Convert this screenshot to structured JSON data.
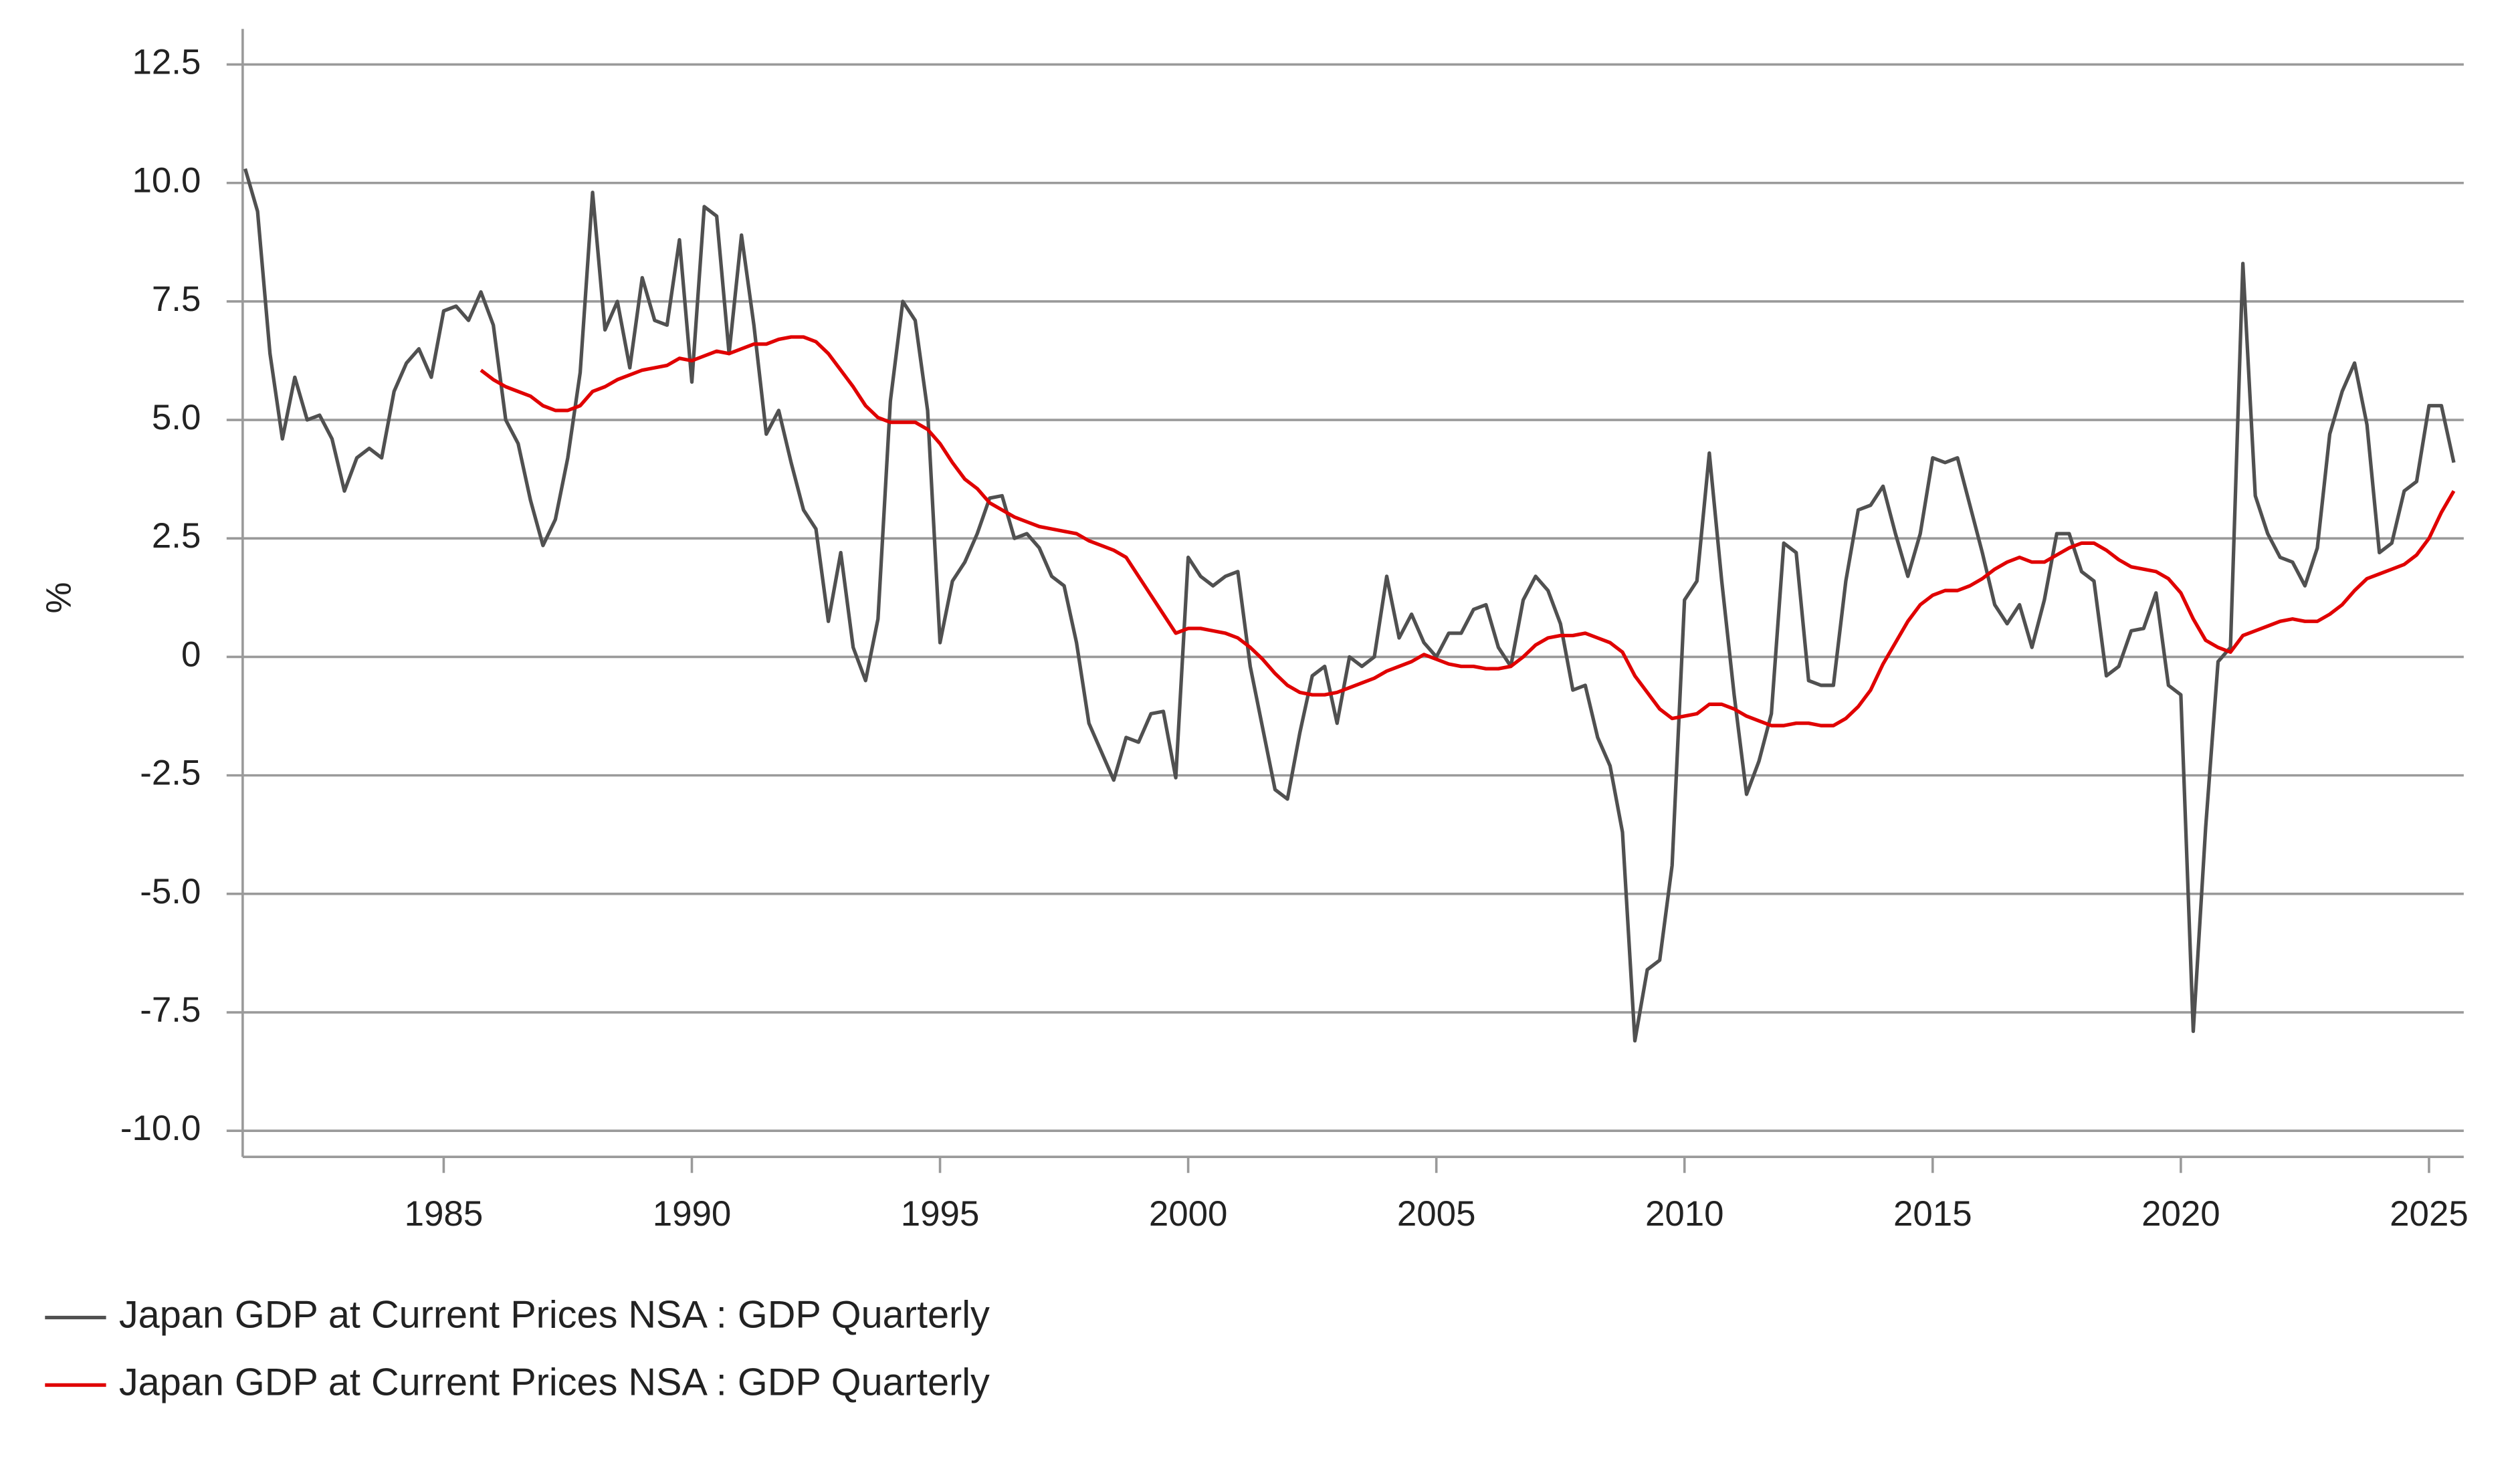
{
  "chart_data": {
    "type": "line",
    "y_label": "%",
    "x": [
      1981,
      1981.25,
      1981.5,
      1981.75,
      1982,
      1982.25,
      1982.5,
      1982.75,
      1983,
      1983.25,
      1983.5,
      1983.75,
      1984,
      1984.25,
      1984.5,
      1984.75,
      1985,
      1985.25,
      1985.5,
      1985.75,
      1986,
      1986.25,
      1986.5,
      1986.75,
      1987,
      1987.25,
      1987.5,
      1987.75,
      1988,
      1988.25,
      1988.5,
      1988.75,
      1989,
      1989.25,
      1989.5,
      1989.75,
      1990,
      1990.25,
      1990.5,
      1990.75,
      1991,
      1991.25,
      1991.5,
      1991.75,
      1992,
      1992.25,
      1992.5,
      1992.75,
      1993,
      1993.25,
      1993.5,
      1993.75,
      1994,
      1994.25,
      1994.5,
      1994.75,
      1995,
      1995.25,
      1995.5,
      1995.75,
      1996,
      1996.25,
      1996.5,
      1996.75,
      1997,
      1997.25,
      1997.5,
      1997.75,
      1998,
      1998.25,
      1998.5,
      1998.75,
      1999,
      1999.25,
      1999.5,
      1999.75,
      2000,
      2000.25,
      2000.5,
      2000.75,
      2001,
      2001.25,
      2001.5,
      2001.75,
      2002,
      2002.25,
      2002.5,
      2002.75,
      2003,
      2003.25,
      2003.5,
      2003.75,
      2004,
      2004.25,
      2004.5,
      2004.75,
      2005,
      2005.25,
      2005.5,
      2005.75,
      2006,
      2006.25,
      2006.5,
      2006.75,
      2007,
      2007.25,
      2007.5,
      2007.75,
      2008,
      2008.25,
      2008.5,
      2008.75,
      2009,
      2009.25,
      2009.5,
      2009.75,
      2010,
      2010.25,
      2010.5,
      2010.75,
      2011,
      2011.25,
      2011.5,
      2011.75,
      2012,
      2012.25,
      2012.5,
      2012.75,
      2013,
      2013.25,
      2013.5,
      2013.75,
      2014,
      2014.25,
      2014.5,
      2014.75,
      2015,
      2015.25,
      2015.5,
      2015.75,
      2016,
      2016.25,
      2016.5,
      2016.75,
      2017,
      2017.25,
      2017.5,
      2017.75,
      2018,
      2018.25,
      2018.5,
      2018.75,
      2019,
      2019.25,
      2019.5,
      2019.75,
      2020,
      2020.25,
      2020.5,
      2020.75,
      2021,
      2021.25,
      2021.5,
      2021.75,
      2022,
      2022.25,
      2022.5,
      2022.75,
      2023,
      2023.25,
      2023.5,
      2023.75,
      2024,
      2024.25,
      2024.5,
      2024.75,
      2025,
      2025.25,
      2025.5
    ],
    "series": [
      {
        "name": "Japan GDP at Current Prices NSA : GDP Quarterly",
        "color": "#505050",
        "values": [
          10.3,
          9.4,
          6.4,
          4.6,
          5.9,
          5.0,
          5.1,
          4.6,
          3.5,
          4.2,
          4.4,
          4.2,
          5.6,
          6.2,
          6.5,
          5.9,
          7.3,
          7.4,
          7.1,
          7.7,
          7.0,
          5.0,
          4.5,
          3.3,
          2.35,
          2.9,
          4.2,
          6.0,
          9.8,
          6.9,
          7.5,
          6.1,
          8.0,
          7.1,
          7.0,
          8.8,
          5.8,
          9.5,
          9.3,
          6.4,
          8.9,
          7.0,
          4.7,
          5.2,
          4.1,
          3.1,
          2.7,
          0.75,
          2.2,
          0.2,
          -0.5,
          0.8,
          5.4,
          7.5,
          7.1,
          5.2,
          0.3,
          1.6,
          2.0,
          2.6,
          3.35,
          3.4,
          2.5,
          2.6,
          2.3,
          1.7,
          1.5,
          0.3,
          -1.4,
          -2.0,
          -2.6,
          -1.7,
          -1.8,
          -1.2,
          -1.15,
          -2.55,
          2.1,
          1.7,
          1.5,
          1.7,
          1.8,
          -0.2,
          -1.5,
          -2.8,
          -3.0,
          -1.6,
          -0.4,
          -0.2,
          -1.4,
          0.0,
          -0.2,
          0.0,
          1.7,
          0.4,
          0.9,
          0.3,
          0.0,
          0.5,
          0.5,
          1.0,
          1.1,
          0.2,
          -0.2,
          1.2,
          1.7,
          1.4,
          0.7,
          -0.7,
          -0.6,
          -1.7,
          -2.3,
          -3.7,
          -8.1,
          -6.6,
          -6.4,
          -4.4,
          1.2,
          1.6,
          4.3,
          1.6,
          -0.8,
          -2.9,
          -2.2,
          -1.2,
          2.4,
          2.2,
          -0.5,
          -0.6,
          -0.6,
          1.6,
          3.1,
          3.2,
          3.6,
          2.6,
          1.7,
          2.6,
          4.2,
          4.1,
          4.2,
          3.2,
          2.2,
          1.1,
          0.7,
          1.1,
          0.2,
          1.2,
          2.6,
          2.6,
          1.8,
          1.6,
          -0.4,
          -0.2,
          0.55,
          0.6,
          1.35,
          -0.6,
          -0.8,
          -7.9,
          -3.6,
          -0.1,
          0.2,
          8.3,
          3.4,
          2.6,
          2.1,
          2.0,
          1.5,
          2.3,
          4.7,
          5.6,
          6.2,
          4.9,
          2.2,
          2.4,
          3.5,
          3.7,
          5.3,
          5.3,
          4.1
        ]
      },
      {
        "name": "Japan GDP at Current Prices NSA : GDP Quarterly",
        "color": "#e00000",
        "values": [
          null,
          null,
          null,
          null,
          null,
          null,
          null,
          null,
          null,
          null,
          null,
          null,
          null,
          null,
          null,
          null,
          null,
          null,
          null,
          6.05,
          5.85,
          5.7,
          5.6,
          5.5,
          5.3,
          5.2,
          5.2,
          5.3,
          5.6,
          5.7,
          5.85,
          5.95,
          6.05,
          6.1,
          6.15,
          6.3,
          6.25,
          6.35,
          6.45,
          6.4,
          6.5,
          6.6,
          6.6,
          6.7,
          6.75,
          6.75,
          6.65,
          6.4,
          6.05,
          5.7,
          5.3,
          5.05,
          4.95,
          4.95,
          4.95,
          4.8,
          4.5,
          4.1,
          3.75,
          3.55,
          3.25,
          3.1,
          2.95,
          2.85,
          2.75,
          2.7,
          2.65,
          2.6,
          2.45,
          2.35,
          2.25,
          2.1,
          1.7,
          1.3,
          0.9,
          0.5,
          0.6,
          0.6,
          0.55,
          0.5,
          0.4,
          0.2,
          -0.05,
          -0.35,
          -0.6,
          -0.75,
          -0.8,
          -0.8,
          -0.75,
          -0.65,
          -0.55,
          -0.45,
          -0.3,
          -0.2,
          -0.1,
          0.05,
          -0.05,
          -0.15,
          -0.2,
          -0.2,
          -0.25,
          -0.25,
          -0.2,
          0.0,
          0.25,
          0.4,
          0.45,
          0.45,
          0.5,
          0.4,
          0.3,
          0.1,
          -0.4,
          -0.75,
          -1.1,
          -1.3,
          -1.25,
          -1.2,
          -1.0,
          -1.0,
          -1.1,
          -1.25,
          -1.35,
          -1.45,
          -1.45,
          -1.4,
          -1.4,
          -1.45,
          -1.45,
          -1.3,
          -1.05,
          -0.7,
          -0.15,
          0.3,
          0.75,
          1.1,
          1.3,
          1.4,
          1.4,
          1.5,
          1.65,
          1.85,
          2.0,
          2.1,
          2.0,
          2.0,
          2.15,
          2.3,
          2.4,
          2.4,
          2.25,
          2.05,
          1.9,
          1.85,
          1.8,
          1.65,
          1.35,
          0.8,
          0.35,
          0.2,
          0.1,
          0.45,
          0.55,
          0.65,
          0.75,
          0.8,
          0.75,
          0.75,
          0.9,
          1.1,
          1.4,
          1.65,
          1.75,
          1.85,
          1.95,
          2.15,
          2.5,
          3.05,
          3.5
        ]
      }
    ],
    "xlim": [
      1980.95,
      2025.7
    ],
    "xticks": [
      1985,
      1990,
      1995,
      2000,
      2005,
      2010,
      2015,
      2020,
      2025
    ],
    "ylim": [
      -10.55,
      13.25
    ],
    "yticks": [
      {
        "value": -10,
        "label": "-10.0"
      },
      -7.5,
      {
        "value": -5,
        "label": "-5.0"
      },
      -2.5,
      0.0,
      2.5,
      {
        "value": 5,
        "label": "5.0"
      },
      7.5,
      {
        "value": 10,
        "label": "10.0"
      },
      12.5
    ],
    "grid": true,
    "legend": "bottom"
  }
}
